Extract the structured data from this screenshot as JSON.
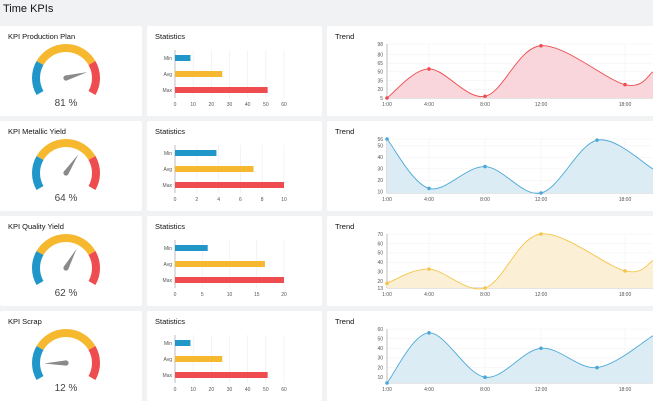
{
  "page": {
    "title": "Time KPIs"
  },
  "colors": {
    "blue": "#2196c9",
    "yellow": "#f5b82e",
    "red": "#ee4c4f",
    "needle": "#8a8a8a"
  },
  "rows": [
    {
      "gauge": {
        "title": "KPI Production Plan",
        "value": 81,
        "label": "81 %"
      },
      "stats": {
        "title": "Statistics",
        "chart_data": {
          "type": "bar",
          "categories": [
            "Min",
            "Avg",
            "Max"
          ],
          "values": [
            8.5,
            26,
            51
          ],
          "ticks": [
            0,
            10,
            20,
            30,
            40,
            50,
            60
          ],
          "xlim": [
            0,
            60
          ]
        }
      },
      "trend": {
        "title": "Trend",
        "chart_data": {
          "type": "area",
          "color": "#ee4c4f",
          "fill": "#f9d6dc",
          "x_ticks": [
            "1:00",
            "4:00",
            "8:00",
            "12:00",
            "18:00"
          ],
          "points": [
            [
              1,
              5
            ],
            [
              4,
              55
            ],
            [
              8,
              8
            ],
            [
              12,
              95
            ],
            [
              18,
              28
            ],
            [
              20,
              50
            ]
          ],
          "x_range": [
            1,
            20
          ],
          "y_ticks": [
            5,
            20,
            35,
            50,
            65,
            80,
            98
          ],
          "ylim": [
            5,
            98
          ]
        }
      }
    },
    {
      "gauge": {
        "title": "KPI Metallic Yield",
        "value": 64,
        "label": "64 %"
      },
      "stats": {
        "title": "Statistics",
        "chart_data": {
          "type": "bar",
          "categories": [
            "Min",
            "Avg",
            "Max"
          ],
          "values": [
            3.8,
            7.2,
            10
          ],
          "ticks": [
            0,
            2,
            4,
            6,
            8,
            10
          ],
          "xlim": [
            0,
            10
          ]
        }
      },
      "trend": {
        "title": "Trend",
        "chart_data": {
          "type": "area",
          "color": "#4aa8d8",
          "fill": "#dcecf4",
          "x_ticks": [
            "1:00",
            "4:00",
            "8:00",
            "12:00",
            "18:00"
          ],
          "points": [
            [
              1,
              56
            ],
            [
              4,
              13
            ],
            [
              8,
              32
            ],
            [
              12,
              9
            ],
            [
              16,
              55
            ],
            [
              20,
              30
            ]
          ],
          "x_range": [
            1,
            20
          ],
          "y_ticks": [
            10,
            20,
            30,
            40,
            50,
            56
          ],
          "ylim": [
            9,
            56
          ]
        }
      }
    },
    {
      "gauge": {
        "title": "KPI Quality Yield",
        "value": 62,
        "label": "62 %"
      },
      "stats": {
        "title": "Statistics",
        "chart_data": {
          "type": "bar",
          "categories": [
            "Min",
            "Avg",
            "Max"
          ],
          "values": [
            6,
            16.5,
            20
          ],
          "ticks": [
            0,
            5,
            10,
            15,
            20
          ],
          "xlim": [
            0,
            20
          ]
        }
      },
      "trend": {
        "title": "Trend",
        "chart_data": {
          "type": "area",
          "color": "#f5c54a",
          "fill": "#fbf0d6",
          "x_ticks": [
            "1:00",
            "4:00",
            "8:00",
            "12:00",
            "18:00"
          ],
          "points": [
            [
              1,
              18
            ],
            [
              4,
              33
            ],
            [
              8,
              13
            ],
            [
              12,
              70
            ],
            [
              18,
              31
            ],
            [
              20,
              42
            ]
          ],
          "x_range": [
            1,
            20
          ],
          "y_ticks": [
            13,
            20,
            30,
            40,
            50,
            60,
            70
          ],
          "ylim": [
            13,
            70
          ]
        }
      }
    },
    {
      "gauge": {
        "title": "KPI Scrap",
        "value": 12,
        "label": "12 %"
      },
      "stats": {
        "title": "Statistics",
        "chart_data": {
          "type": "bar",
          "categories": [
            "Min",
            "Avg",
            "Max"
          ],
          "values": [
            8.5,
            26,
            51
          ],
          "ticks": [
            0,
            10,
            20,
            30,
            40,
            50,
            60
          ],
          "xlim": [
            0,
            60
          ]
        }
      },
      "trend": {
        "title": "Trend",
        "chart_data": {
          "type": "area",
          "color": "#4aa8d8",
          "fill": "#dcecf4",
          "x_ticks": [
            "1:00",
            "4:00",
            "8:00",
            "12:00",
            "18:00"
          ],
          "points": [
            [
              1,
              4
            ],
            [
              4,
              56
            ],
            [
              8,
              10
            ],
            [
              12,
              40
            ],
            [
              16,
              20
            ],
            [
              20,
              53
            ]
          ],
          "x_range": [
            1,
            20
          ],
          "y_ticks": [
            10,
            20,
            30,
            40,
            50,
            60
          ],
          "ylim": [
            4,
            60
          ]
        }
      }
    }
  ]
}
